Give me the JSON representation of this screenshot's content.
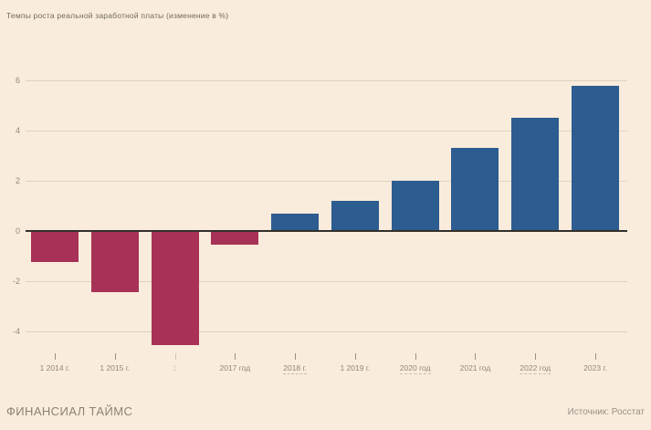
{
  "title": "Темпы роста реальной заработной платы (изменение в %)",
  "footer": {
    "brand": "ФИНАНСИАЛ ТАЙМС",
    "source": "Источник: Росстат"
  },
  "colors": {
    "background": "#faecdc",
    "positive_bar": "#2d5c90",
    "negative_bar": "#a73157",
    "zero_axis": "#32302b",
    "gridline": "#ddd2c1",
    "muted_text": "#8f887c"
  },
  "chart_data": {
    "type": "bar",
    "title": "Темпы роста реальной заработной платы (изменение в %)",
    "categories": [
      "1 2014 г.",
      "1 2015 г.",
      "1",
      "2017 год",
      "2018 г.",
      "1 2019 г.",
      "2020 год",
      "2021 год",
      "2022 год",
      "2023 г."
    ],
    "values": [
      -1.2,
      -2.4,
      -4.5,
      -0.5,
      0.7,
      1.2,
      2.0,
      3.3,
      4.5,
      5.8
    ],
    "xlabel": "",
    "ylabel": "",
    "ytick_labels": [
      "6",
      "4",
      "2",
      "0",
      "-2",
      "-4"
    ],
    "yticks": [
      6,
      4,
      2,
      0,
      -2,
      -4
    ],
    "ylim": [
      -5,
      6.5
    ],
    "grid": true,
    "legend": false,
    "color_rule": "negative values crimson, positive values blue",
    "style_hints": {
      "faint_label_indices": [
        2
      ],
      "dashed_underline_indices": [
        4,
        6,
        8
      ]
    }
  }
}
